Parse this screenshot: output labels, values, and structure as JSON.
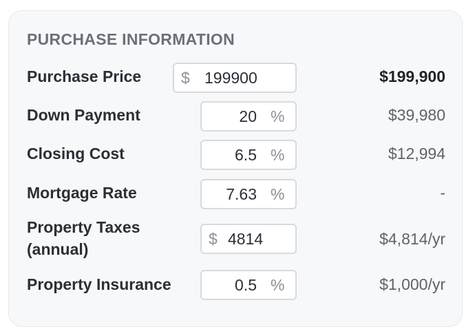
{
  "section": {
    "title": "PURCHASE INFORMATION"
  },
  "rows": [
    {
      "label": "Purchase Price",
      "prefix": "$",
      "value": "199900",
      "suffix": "",
      "computed": "$199,900"
    },
    {
      "label": "Down Payment",
      "prefix": "",
      "value": "20",
      "suffix": "%",
      "computed": "$39,980"
    },
    {
      "label": "Closing Cost",
      "prefix": "",
      "value": "6.5",
      "suffix": "%",
      "computed": "$12,994"
    },
    {
      "label": "Mortgage Rate",
      "prefix": "",
      "value": "7.63",
      "suffix": "%",
      "computed": "-"
    },
    {
      "label_line1": "Property Taxes",
      "label_line2": "(annual)",
      "prefix": "$",
      "value": "4814",
      "suffix": "",
      "computed": "$4,814/yr"
    },
    {
      "label": "Property Insurance",
      "prefix": "",
      "value": "0.5",
      "suffix": "%",
      "computed": "$1,000/yr"
    }
  ]
}
